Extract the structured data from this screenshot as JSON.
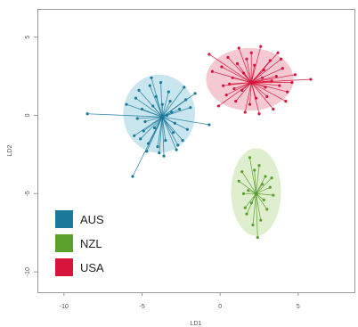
{
  "chart_data": {
    "type": "scatter",
    "xlabel": "LD1",
    "ylabel": "LD2",
    "xlim": [
      -11.7,
      8.6
    ],
    "ylim": [
      -11.3,
      6.8
    ],
    "xticks": [
      -10,
      -5,
      0,
      5
    ],
    "yticks": [
      5,
      0,
      -5,
      -10
    ],
    "xtick_labels": [
      "-10",
      "-5",
      "0",
      "5"
    ],
    "ytick_labels": [
      "5",
      "0",
      "-5",
      "-10"
    ],
    "grid": false,
    "legend_position": "bottom-left",
    "series": [
      {
        "name": "AUS",
        "color": "#1b7a9c",
        "ellipse_color": "#bfe2ec",
        "centroid": [
          -3.7,
          -0.1
        ],
        "ellipse": {
          "cx": -3.9,
          "cy": 0.1,
          "rx": 2.3,
          "ry": 2.5
        },
        "points": [
          [
            -8.5,
            0.1
          ],
          [
            -5.6,
            -3.9
          ],
          [
            -0.7,
            -0.6
          ],
          [
            -4.4,
            2.4
          ],
          [
            -2.3,
            1.8
          ],
          [
            -1.6,
            1.4
          ],
          [
            -5.2,
            1.6
          ],
          [
            -6.0,
            0.7
          ],
          [
            -5.5,
            -1.3
          ],
          [
            -2.8,
            -2.2
          ],
          [
            -3.9,
            -2.4
          ],
          [
            -2.1,
            -0.9
          ],
          [
            -4.8,
            -0.4
          ],
          [
            -3.2,
            0.9
          ],
          [
            -4.1,
            1.2
          ],
          [
            -4.6,
            -1.8
          ],
          [
            -3.0,
            -1.1
          ],
          [
            -2.6,
            0.4
          ],
          [
            -5.0,
            0.4
          ],
          [
            -3.5,
            -1.6
          ],
          [
            -4.3,
            0.6
          ],
          [
            -3.3,
            1.5
          ],
          [
            -2.9,
            -0.5
          ],
          [
            -4.9,
            -1.0
          ],
          [
            -3.8,
            2.1
          ],
          [
            -2.4,
            -1.6
          ],
          [
            -5.3,
            -0.2
          ],
          [
            -4.0,
            -2.0
          ],
          [
            -3.1,
            0.2
          ],
          [
            -1.9,
            0.5
          ],
          [
            -4.5,
            1.9
          ],
          [
            -3.6,
            -2.6
          ],
          [
            -5.4,
            1.1
          ],
          [
            -2.2,
            1.0
          ],
          [
            -4.7,
            -2.3
          ],
          [
            -3.4,
            0.0
          ],
          [
            -4.2,
            -0.8
          ],
          [
            -3.7,
            0.7
          ],
          [
            -2.7,
            -1.9
          ],
          [
            -5.1,
            -1.5
          ]
        ]
      },
      {
        "name": "NZL",
        "color": "#5aa02c",
        "ellipse_color": "#d9ebc7",
        "centroid": [
          2.3,
          -5.0
        ],
        "ellipse": {
          "cx": 2.3,
          "cy": -4.9,
          "rx": 1.6,
          "ry": 2.8
        },
        "points": [
          [
            1.9,
            -2.7
          ],
          [
            2.4,
            -7.8
          ],
          [
            1.2,
            -4.2
          ],
          [
            3.4,
            -5.1
          ],
          [
            1.7,
            -6.3
          ],
          [
            2.9,
            -3.9
          ],
          [
            2.0,
            -5.6
          ],
          [
            2.7,
            -4.4
          ],
          [
            1.5,
            -5.0
          ],
          [
            3.0,
            -6.0
          ],
          [
            2.2,
            -3.5
          ],
          [
            1.8,
            -4.8
          ],
          [
            2.6,
            -6.7
          ],
          [
            3.2,
            -4.6
          ],
          [
            2.1,
            -7.0
          ],
          [
            1.4,
            -3.6
          ],
          [
            2.8,
            -5.4
          ],
          [
            2.5,
            -3.2
          ],
          [
            1.6,
            -5.9
          ],
          [
            3.3,
            -4.0
          ]
        ]
      },
      {
        "name": "USA",
        "color": "#d6143c",
        "ellipse_color": "#f3bfca",
        "centroid": [
          2.0,
          2.1
        ],
        "ellipse": {
          "cx": 1.9,
          "cy": 2.3,
          "rx": 2.8,
          "ry": 2.0
        },
        "points": [
          [
            -0.7,
            3.9
          ],
          [
            5.8,
            2.3
          ],
          [
            -0.1,
            0.6
          ],
          [
            3.7,
            4.0
          ],
          [
            0.5,
            3.7
          ],
          [
            1.2,
            4.3
          ],
          [
            3.2,
            3.5
          ],
          [
            4.3,
            1.5
          ],
          [
            0.2,
            1.9
          ],
          [
            -0.5,
            2.8
          ],
          [
            3.4,
            0.4
          ],
          [
            2.5,
            0.1
          ],
          [
            1.0,
            0.9
          ],
          [
            4.0,
            3.0
          ],
          [
            1.7,
            3.6
          ],
          [
            2.8,
            2.9
          ],
          [
            0.8,
            2.4
          ],
          [
            3.0,
            1.2
          ],
          [
            1.4,
            1.6
          ],
          [
            4.6,
            2.1
          ],
          [
            2.2,
            3.2
          ],
          [
            0.4,
            1.3
          ],
          [
            3.6,
            2.5
          ],
          [
            1.9,
            0.7
          ],
          [
            2.6,
            4.4
          ],
          [
            4.2,
            0.9
          ],
          [
            0.1,
            3.1
          ],
          [
            1.5,
            2.7
          ],
          [
            2.9,
            1.8
          ],
          [
            3.9,
            3.6
          ],
          [
            2.3,
            1.1
          ],
          [
            0.6,
            2.0
          ],
          [
            1.1,
            3.3
          ],
          [
            3.3,
            2.2
          ],
          [
            2.0,
            4.0
          ],
          [
            4.8,
            2.6
          ],
          [
            1.6,
            0.2
          ],
          [
            2.7,
            2.4
          ],
          [
            0.9,
            1.7
          ],
          [
            3.8,
            1.9
          ]
        ]
      }
    ]
  }
}
